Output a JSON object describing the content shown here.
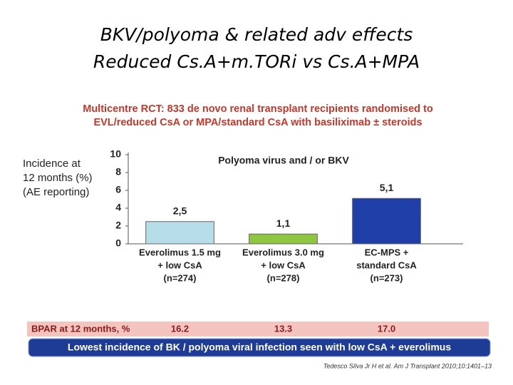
{
  "chart_data": {
    "type": "bar",
    "title": [
      "BKV/polyoma & related adv effects",
      "Reduced Cs.A+m.TORi vs Cs.A+MPA"
    ],
    "subtitle": [
      "Multicentre RCT: 833 de novo renal transplant recipients randomised to",
      "EVL/reduced CsA or MPA/standard CsA with basiliximab ± steroids"
    ],
    "plot_title": "Polyoma virus and / or BKV",
    "y_label": [
      "Incidence at",
      "12 months (%)",
      "(AE reporting)"
    ],
    "categories": [
      [
        "Everolimus 1.5 mg",
        "+ low CsA",
        "(n=274)"
      ],
      [
        "Everolimus 3.0 mg",
        "+ low CsA",
        "(n=278)"
      ],
      [
        "EC-MPS +",
        "standard CsA",
        "(n=273)"
      ]
    ],
    "values": [
      2.5,
      1.1,
      5.1
    ],
    "value_labels": [
      "2,5",
      "1,1",
      "5,1"
    ],
    "colors": [
      "#b7dde8",
      "#8dc63f",
      "#1f3ea8"
    ],
    "ylim": [
      0,
      10
    ],
    "yticks": [
      0,
      2,
      4,
      6,
      8,
      10
    ],
    "grid": false
  },
  "bpar": {
    "label": "BPAR at 12 months, %",
    "values": [
      "16.2",
      "13.3",
      "17.0"
    ]
  },
  "banner": "Lowest incidence of BK / polyoma viral infection seen with low CsA + everolimus",
  "citation": "Tedesco Silva Jr H et al. Am J Transplant 2010;10:1401–13"
}
